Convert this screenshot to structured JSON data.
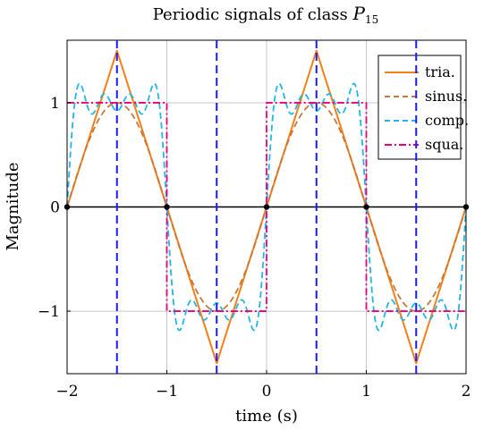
{
  "chart_data": {
    "type": "line",
    "title": "Periodic signals of class",
    "title_symbol": "P",
    "title_subscript": "15",
    "xlabel": "time (s)",
    "ylabel": "Magnitude",
    "xlim": [
      -2,
      2
    ],
    "ylim": [
      -1.6,
      1.6
    ],
    "xticks": [
      -2,
      -1,
      0,
      1,
      2
    ],
    "xtick_labels": [
      "−2",
      "−1",
      "0",
      "1",
      "2"
    ],
    "yticks": [
      -1,
      0,
      1
    ],
    "ytick_labels": [
      "−1",
      "0",
      "1"
    ],
    "grid": true,
    "legend_position": "top-right",
    "period": 2,
    "series": [
      {
        "name": "tria.",
        "color": "#f57f17",
        "dash": "solid",
        "kind": "triangle",
        "amplitude": 1.5,
        "x": [
          -2,
          -1.5,
          -0.5,
          0.5,
          1.5,
          2
        ],
        "y": [
          0,
          1.5,
          -1.5,
          1.5,
          -1.5,
          0
        ]
      },
      {
        "name": "sinus.",
        "color": "#c8783c",
        "dash": "dashed",
        "kind": "sine",
        "amplitude": 1
      },
      {
        "name": "comp.",
        "color": "#22b5e6",
        "dash": "dashed",
        "kind": "fourier-square",
        "amplitude": 1,
        "harmonics": 4
      },
      {
        "name": "squa.",
        "color": "#e6007e",
        "dash": "dashdot",
        "kind": "square",
        "amplitude": 1
      }
    ],
    "vertical_markers": {
      "x": [
        -1.5,
        -0.5,
        0.5,
        1.5
      ],
      "color": "#1a1aff",
      "dash": "dashed"
    },
    "zero_line": {
      "y": 0,
      "color": "#000000"
    },
    "points": {
      "x": [
        -2,
        -1,
        0,
        1,
        2
      ],
      "y": [
        0,
        0,
        0,
        0,
        0
      ],
      "color": "#000000"
    }
  }
}
